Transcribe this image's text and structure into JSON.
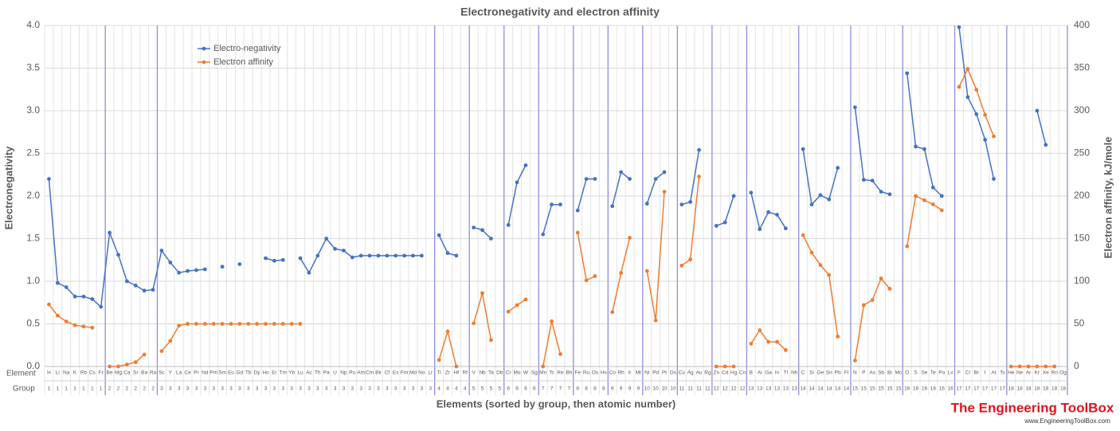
{
  "chart_data": {
    "type": "line",
    "title": "Electronegativity and electron affinity",
    "x_label": "Elements (sorted by group, then atomic number)",
    "y_label": "Electronegativity",
    "y2_label": "Electron affinity,  kJ/mole",
    "row_labels": [
      "Element",
      "Group"
    ],
    "categories": [
      "H",
      "Li",
      "Na",
      "K",
      "Rb",
      "Cs",
      "Fr",
      "Be",
      "Mg",
      "Ca",
      "Sr",
      "Ba",
      "Ra",
      "Sc",
      "Y",
      "La",
      "Ce",
      "Pr",
      "Nd",
      "Pm",
      "Sm",
      "Eu",
      "Gd",
      "Tb",
      "Dy",
      "Ho",
      "Er",
      "Tm",
      "Yb",
      "Lu",
      "Ac",
      "Th",
      "Pa",
      "U",
      "Np",
      "Pu",
      "Am",
      "Cm",
      "Bk",
      "Cf",
      "Es",
      "Fm",
      "Md",
      "No",
      "Lr",
      "Ti",
      "Zr",
      "Hf",
      "Rf",
      "V",
      "Nb",
      "Ta",
      "Db",
      "Cr",
      "Mo",
      "W",
      "Sg",
      "Mn",
      "Tc",
      "Re",
      "Bh",
      "Fe",
      "Ru",
      "Os",
      "Hs",
      "Co",
      "Rh",
      "Ir",
      "Mt",
      "Ni",
      "Pd",
      "Pt",
      "Ds",
      "Cu",
      "Ag",
      "Au",
      "Rg",
      "Zn",
      "Cd",
      "Hg",
      "Cn",
      "B",
      "Al",
      "Ga",
      "In",
      "Tl",
      "Nh",
      "C",
      "Si",
      "Ge",
      "Sn",
      "Pb",
      "Fl",
      "N",
      "P",
      "As",
      "Sb",
      "Bi",
      "Mc",
      "O",
      "S",
      "Se",
      "Te",
      "Po",
      "Lv",
      "F",
      "Cl",
      "Br",
      "I",
      "At",
      "Ts",
      "He",
      "Ne",
      "Ar",
      "Kr",
      "Xe",
      "Rn",
      "Og"
    ],
    "groups": [
      1,
      1,
      1,
      1,
      1,
      1,
      1,
      2,
      2,
      2,
      2,
      2,
      2,
      3,
      3,
      3,
      3,
      3,
      3,
      3,
      3,
      3,
      3,
      3,
      3,
      3,
      3,
      3,
      3,
      3,
      3,
      3,
      3,
      3,
      3,
      3,
      3,
      3,
      3,
      3,
      3,
      3,
      3,
      3,
      3,
      4,
      4,
      4,
      4,
      5,
      5,
      5,
      5,
      6,
      6,
      6,
      6,
      7,
      7,
      7,
      7,
      8,
      8,
      8,
      8,
      9,
      9,
      9,
      9,
      10,
      10,
      10,
      10,
      11,
      11,
      11,
      11,
      12,
      12,
      12,
      12,
      13,
      13,
      13,
      13,
      13,
      13,
      14,
      14,
      14,
      14,
      14,
      14,
      15,
      15,
      15,
      15,
      15,
      15,
      16,
      16,
      16,
      16,
      16,
      16,
      17,
      17,
      17,
      17,
      17,
      17,
      18,
      18,
      18,
      18,
      18,
      18,
      18
    ],
    "series": [
      {
        "name": "Electro-negativity",
        "color": "#4472c4",
        "axis": "y",
        "values": [
          2.2,
          0.98,
          0.93,
          0.82,
          0.82,
          0.79,
          0.7,
          1.57,
          1.31,
          1.0,
          0.95,
          0.89,
          0.9,
          1.36,
          1.22,
          1.1,
          1.12,
          1.13,
          1.14,
          null,
          1.17,
          null,
          1.2,
          null,
          null,
          1.27,
          1.24,
          1.25,
          null,
          1.27,
          1.1,
          1.3,
          1.5,
          1.38,
          1.36,
          1.28,
          1.3,
          1.3,
          1.3,
          1.3,
          1.3,
          1.3,
          1.3,
          1.3,
          null,
          1.54,
          1.33,
          1.3,
          null,
          1.63,
          1.6,
          1.5,
          null,
          1.66,
          2.16,
          2.36,
          null,
          1.55,
          1.9,
          1.9,
          null,
          1.83,
          2.2,
          2.2,
          null,
          1.88,
          2.28,
          2.2,
          null,
          1.91,
          2.2,
          2.28,
          null,
          1.9,
          1.93,
          2.54,
          null,
          1.65,
          1.69,
          2.0,
          null,
          2.04,
          1.61,
          1.81,
          1.78,
          1.62,
          null,
          2.55,
          1.9,
          2.01,
          1.96,
          2.33,
          null,
          3.04,
          2.19,
          2.18,
          2.05,
          2.02,
          null,
          3.44,
          2.58,
          2.55,
          2.1,
          2.0,
          null,
          3.98,
          3.16,
          2.96,
          2.66,
          2.2,
          null,
          null,
          null,
          null,
          3.0,
          2.6,
          null,
          null
        ]
      },
      {
        "name": "Electron affinity",
        "color": "#ed7d31",
        "axis": "y2",
        "values": [
          72.8,
          59.6,
          52.8,
          48.4,
          46.9,
          45.5,
          null,
          0,
          0,
          2.37,
          5.03,
          13.95,
          null,
          18,
          30,
          48,
          50,
          50,
          50,
          50,
          50,
          50,
          50,
          50,
          50,
          50,
          50,
          50,
          50,
          50,
          null,
          null,
          null,
          null,
          null,
          null,
          null,
          null,
          null,
          null,
          null,
          null,
          null,
          null,
          null,
          7.6,
          41.1,
          0,
          null,
          50.6,
          86.1,
          31,
          null,
          64.3,
          71.9,
          78.6,
          null,
          0,
          53,
          14.5,
          null,
          157,
          101,
          106,
          null,
          63.7,
          109.7,
          151,
          null,
          112,
          54,
          205,
          null,
          118.4,
          125.6,
          222.8,
          null,
          0,
          0,
          0,
          null,
          26.7,
          42.5,
          28.9,
          28.9,
          19.2,
          null,
          153.9,
          133.6,
          119,
          107.3,
          35.1,
          null,
          7,
          72,
          78,
          103.2,
          91.2,
          null,
          141,
          200,
          195,
          190.2,
          183.3,
          null,
          328,
          349,
          324.6,
          295.2,
          270,
          null,
          0,
          0,
          0,
          0,
          0,
          0,
          null
        ]
      }
    ],
    "ylim": [
      0,
      4
    ],
    "yticks": [
      {
        "value": 0,
        "label": "0.0"
      },
      0.5,
      {
        "value": 1,
        "label": "1.0"
      },
      1.5,
      {
        "value": 2,
        "label": "2.0"
      },
      2.5,
      {
        "value": 3,
        "label": "3.0"
      },
      3.5,
      {
        "value": 4,
        "label": "4.0"
      }
    ],
    "y2lim": [
      0,
      400
    ],
    "y2ticks": [
      0,
      50,
      100,
      150,
      200,
      250,
      300,
      350,
      400
    ],
    "grid": true,
    "legend": "top-left",
    "logo": "The Engineering ToolBox",
    "logo_url": "www.EngineeringToolBox.com"
  }
}
